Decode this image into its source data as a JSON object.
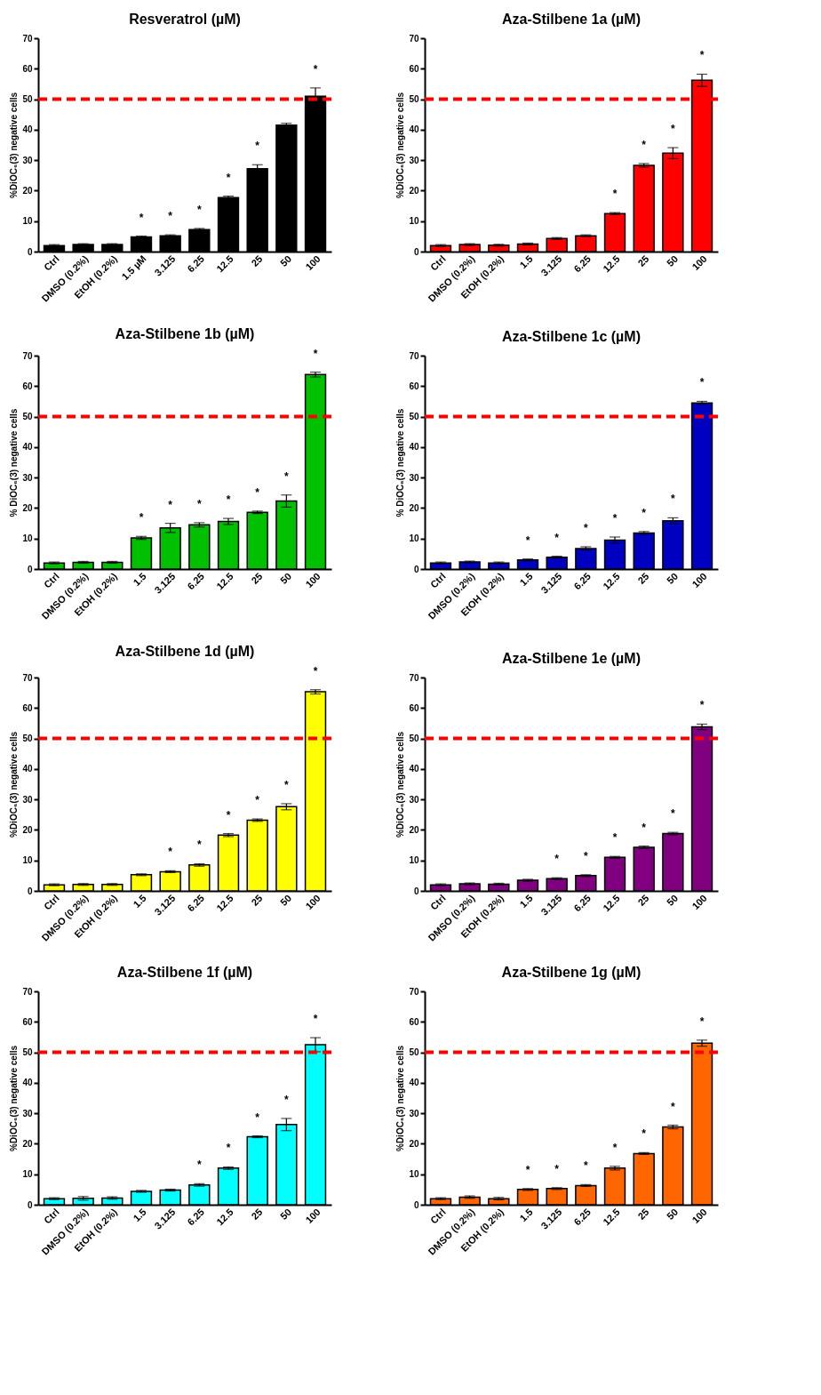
{
  "chart_data": [
    {
      "type": "bar",
      "title": "Resveratrol (µM)",
      "ylabel": "%DiOC₆(3) negative cells",
      "categories": [
        "Ctrl",
        "DMSO (0.2%)",
        "EtOH (0.2%)",
        "1.5 µM",
        "3.125",
        "6.25",
        "12.5",
        "25",
        "50",
        "100"
      ],
      "values": [
        2,
        2.3,
        2.3,
        4.8,
        5.2,
        7.2,
        17.7,
        27.2,
        41.5,
        51
      ],
      "errors": [
        0.3,
        0.3,
        0.3,
        0.3,
        0.3,
        0.4,
        0.5,
        1.3,
        0.6,
        2.7
      ],
      "color": "#000000",
      "ylim": [
        0,
        70
      ],
      "yticks": [
        0,
        10,
        20,
        30,
        40,
        50,
        60,
        70
      ],
      "grid": false,
      "ref_lines": [
        {
          "axis": "y",
          "value": 50,
          "color": "#ff0000",
          "line_style": "dashed"
        }
      ],
      "annotations": [
        {
          "text": "*",
          "x": "1.5 µM",
          "y": 5.1
        },
        {
          "text": "*",
          "x": "3.125",
          "y": 5.5
        },
        {
          "text": "*",
          "x": "6.25",
          "y": 7.6
        },
        {
          "text": "*",
          "x": "12.5",
          "y": 18.2
        },
        {
          "text": "*",
          "x": "25",
          "y": 28.5
        },
        {
          "text": "*",
          "x": "100",
          "y": 53.7
        }
      ]
    },
    {
      "type": "bar",
      "title": "Aza-Stilbene 1a (µM)",
      "ylabel": "%DiOC₆(3) negative cells",
      "categories": [
        "Ctrl",
        "DMSO (0.2%)",
        "EtOH (0.2%)",
        "1.5",
        "3.125",
        "6.25",
        "12.5",
        "25",
        "50",
        "100"
      ],
      "values": [
        2,
        2.3,
        2.1,
        2.5,
        4.3,
        5.2,
        12.5,
        28.3,
        32.3,
        56.2
      ],
      "errors": [
        0.3,
        0.3,
        0.3,
        0.3,
        0.3,
        0.3,
        0.3,
        0.6,
        1.8,
        2
      ],
      "color": "#ff0000",
      "ylim": [
        0,
        70
      ],
      "yticks": [
        0,
        10,
        20,
        30,
        40,
        50,
        60,
        70
      ],
      "grid": false,
      "ref_lines": [
        {
          "axis": "y",
          "value": 50,
          "color": "#ff0000",
          "line_style": "dashed"
        }
      ],
      "annotations": [
        {
          "text": "*",
          "x": "12.5",
          "y": 12.8
        },
        {
          "text": "*",
          "x": "25",
          "y": 28.9
        },
        {
          "text": "*",
          "x": "50",
          "y": 34.1
        },
        {
          "text": "*",
          "x": "100",
          "y": 58.2
        }
      ]
    },
    {
      "type": "bar",
      "title": "Aza-Stilbene 1b (µM)",
      "ylabel": "% DiOC₆(3) negative cells",
      "categories": [
        "Ctrl",
        "DMSO (0.2%)",
        "EtOH (0.2%)",
        "1.5",
        "3.125",
        "6.25",
        "12.5",
        "25",
        "50",
        "100"
      ],
      "values": [
        2,
        2.2,
        2.2,
        10.2,
        13.5,
        14.5,
        15.6,
        18.6,
        22.3,
        63.8
      ],
      "errors": [
        0.3,
        0.3,
        0.3,
        0.5,
        1.5,
        0.7,
        1,
        0.4,
        2,
        0.8
      ],
      "color": "#00c000",
      "ylim": [
        0,
        70
      ],
      "yticks": [
        0,
        10,
        20,
        30,
        40,
        50,
        60,
        70
      ],
      "grid": false,
      "ref_lines": [
        {
          "axis": "y",
          "value": 50,
          "color": "#ff0000",
          "line_style": "dashed"
        }
      ],
      "annotations": [
        {
          "text": "*",
          "x": "1.5",
          "y": 10.7
        },
        {
          "text": "*",
          "x": "3.125",
          "y": 15
        },
        {
          "text": "*",
          "x": "6.25",
          "y": 15.2
        },
        {
          "text": "*",
          "x": "12.5",
          "y": 16.6
        },
        {
          "text": "*",
          "x": "25",
          "y": 19
        },
        {
          "text": "*",
          "x": "50",
          "y": 24.3
        },
        {
          "text": "*",
          "x": "100",
          "y": 64.6
        }
      ]
    },
    {
      "type": "bar",
      "title": "Aza-Stilbene 1c (µM)",
      "ylabel": "% DiOC₆(3) negative cells",
      "categories": [
        "Ctrl",
        "DMSO (0.2%)",
        "EtOH (0.2%)",
        "1.5",
        "3.125",
        "6.25",
        "12.5",
        "25",
        "50",
        "100"
      ],
      "values": [
        2,
        2.3,
        2,
        3,
        3.9,
        6.7,
        9.5,
        11.8,
        15.8,
        54.5
      ],
      "errors": [
        0.3,
        0.3,
        0.3,
        0.3,
        0.3,
        0.6,
        1,
        0.5,
        1,
        0.5
      ],
      "color": "#0000c0",
      "ylim": [
        0,
        70
      ],
      "yticks": [
        0,
        10,
        20,
        30,
        40,
        50,
        60,
        70
      ],
      "grid": false,
      "ref_lines": [
        {
          "axis": "y",
          "value": 50,
          "color": "#ff0000",
          "line_style": "dashed"
        }
      ],
      "annotations": [
        {
          "text": "*",
          "x": "1.5",
          "y": 3.3
        },
        {
          "text": "*",
          "x": "3.125",
          "y": 4.2
        },
        {
          "text": "*",
          "x": "6.25",
          "y": 7.3
        },
        {
          "text": "*",
          "x": "12.5",
          "y": 10.5
        },
        {
          "text": "*",
          "x": "25",
          "y": 12.3
        },
        {
          "text": "*",
          "x": "50",
          "y": 16.8
        },
        {
          "text": "*",
          "x": "100",
          "y": 55
        }
      ]
    },
    {
      "type": "bar",
      "title": "Aza-Stilbene 1d (µM)",
      "ylabel": "%DiOC₆(3) negative cells",
      "categories": [
        "Ctrl",
        "DMSO (0.2%)",
        "EtOH (0.2%)",
        "1.5",
        "3.125",
        "6.25",
        "12.5",
        "25",
        "50",
        "100"
      ],
      "values": [
        2,
        2.1,
        2.1,
        5.3,
        6.3,
        8.5,
        18.3,
        23.2,
        27.6,
        65.3
      ],
      "errors": [
        0.3,
        0.3,
        0.3,
        0.3,
        0.3,
        0.4,
        0.5,
        0.4,
        1,
        0.7
      ],
      "color": "#ffff00",
      "ylim": [
        0,
        70
      ],
      "yticks": [
        0,
        10,
        20,
        30,
        40,
        50,
        60,
        70
      ],
      "grid": false,
      "ref_lines": [
        {
          "axis": "y",
          "value": 50,
          "color": "#ff0000",
          "line_style": "dashed"
        }
      ],
      "annotations": [
        {
          "text": "*",
          "x": "3.125",
          "y": 6.6
        },
        {
          "text": "*",
          "x": "6.25",
          "y": 8.9
        },
        {
          "text": "*",
          "x": "12.5",
          "y": 18.8
        },
        {
          "text": "*",
          "x": "25",
          "y": 23.6
        },
        {
          "text": "*",
          "x": "50",
          "y": 28.6
        },
        {
          "text": "*",
          "x": "100",
          "y": 66
        }
      ]
    },
    {
      "type": "bar",
      "title": "Aza-Stilbene 1e (µM)",
      "ylabel": "%DiOC₆(3) negative cells",
      "categories": [
        "Ctrl",
        "DMSO (0.2%)",
        "EtOH (0.2%)",
        "1.5",
        "3.125",
        "6.25",
        "12.5",
        "25",
        "50",
        "100"
      ],
      "values": [
        2,
        2.3,
        2.2,
        3.5,
        4,
        5,
        11,
        14.3,
        18.8,
        53.8
      ],
      "errors": [
        0.3,
        0.3,
        0.3,
        0.3,
        0.3,
        0.3,
        0.3,
        0.4,
        0.4,
        0.9
      ],
      "color": "#800080",
      "ylim": [
        0,
        70
      ],
      "yticks": [
        0,
        10,
        20,
        30,
        40,
        50,
        60,
        70
      ],
      "grid": false,
      "ref_lines": [
        {
          "axis": "y",
          "value": 50,
          "color": "#ff0000",
          "line_style": "dashed"
        }
      ],
      "annotations": [
        {
          "text": "*",
          "x": "3.125",
          "y": 4.3
        },
        {
          "text": "*",
          "x": "6.25",
          "y": 5.3
        },
        {
          "text": "*",
          "x": "12.5",
          "y": 11.3
        },
        {
          "text": "*",
          "x": "25",
          "y": 14.7
        },
        {
          "text": "*",
          "x": "50",
          "y": 19.2
        },
        {
          "text": "*",
          "x": "100",
          "y": 54.7
        }
      ]
    },
    {
      "type": "bar",
      "title": "Aza-Stilbene 1f (µM)",
      "ylabel": "%DiOC₆(3) negative cells",
      "categories": [
        "Ctrl",
        "DMSO (0.2%)",
        "EtOH (0.2%)",
        "1.5",
        "3.125",
        "6.25",
        "12.5",
        "25",
        "50",
        "100"
      ],
      "values": [
        2,
        2.1,
        2.2,
        4.4,
        4.8,
        6.5,
        12,
        22.3,
        26.3,
        52.5
      ],
      "errors": [
        0.3,
        0.6,
        0.4,
        0.3,
        0.3,
        0.4,
        0.4,
        0.3,
        2,
        2.3
      ],
      "color": "#00ffff",
      "ylim": [
        0,
        70
      ],
      "yticks": [
        0,
        10,
        20,
        30,
        40,
        50,
        60,
        70
      ],
      "grid": false,
      "ref_lines": [
        {
          "axis": "y",
          "value": 50,
          "color": "#ff0000",
          "line_style": "dashed"
        }
      ],
      "annotations": [
        {
          "text": "*",
          "x": "6.25",
          "y": 6.9
        },
        {
          "text": "*",
          "x": "12.5",
          "y": 12.4
        },
        {
          "text": "*",
          "x": "25",
          "y": 22.6
        },
        {
          "text": "*",
          "x": "50",
          "y": 28.3
        },
        {
          "text": "*",
          "x": "100",
          "y": 54.8
        }
      ]
    },
    {
      "type": "bar",
      "title": "Aza-Stilbene 1g (µM)",
      "ylabel": "%DiOC₆(3) negative cells",
      "categories": [
        "Ctrl",
        "DMSO (0.2%)",
        "EtOH (0.2%)",
        "1.5",
        "3.125",
        "6.25",
        "12.5",
        "25",
        "50",
        "100"
      ],
      "values": [
        2,
        2.5,
        2,
        5,
        5.3,
        6.3,
        12,
        16.8,
        25.5,
        53
      ],
      "errors": [
        0.3,
        0.4,
        0.4,
        0.3,
        0.3,
        0.3,
        0.6,
        0.3,
        0.6,
        1
      ],
      "color": "#ff6600",
      "ylim": [
        0,
        70
      ],
      "yticks": [
        0,
        10,
        20,
        30,
        40,
        50,
        60,
        70
      ],
      "grid": false,
      "ref_lines": [
        {
          "axis": "y",
          "value": 50,
          "color": "#ff0000",
          "line_style": "dashed"
        }
      ],
      "annotations": [
        {
          "text": "*",
          "x": "1.5",
          "y": 5.3
        },
        {
          "text": "*",
          "x": "3.125",
          "y": 5.6
        },
        {
          "text": "*",
          "x": "6.25",
          "y": 6.6
        },
        {
          "text": "*",
          "x": "12.5",
          "y": 12.6
        },
        {
          "text": "*",
          "x": "25",
          "y": 17.1
        },
        {
          "text": "*",
          "x": "50",
          "y": 26.1
        },
        {
          "text": "*",
          "x": "100",
          "y": 54
        }
      ]
    }
  ]
}
